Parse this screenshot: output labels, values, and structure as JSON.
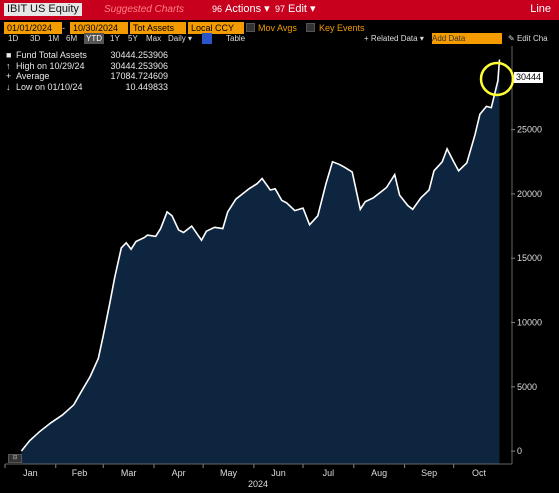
{
  "toolbar": {
    "ticker": "IBIT US Equity",
    "suggested": "Suggested Charts",
    "actions_num": "96",
    "actions_label": "Actions",
    "edit_num": "97",
    "edit_label": "Edit",
    "line_label": "Line"
  },
  "settings": {
    "start_date": "01/01/2024",
    "end_date": "10/30/2024",
    "field": "Tot Assets",
    "currency": "Local CCY",
    "mov_avgs": "Mov Avgs",
    "key_events": "Key Events",
    "related_data": "Related Data",
    "add_data": "Add Data",
    "edit_chart": "Edit Cha"
  },
  "periods": {
    "items": [
      "1D",
      "3D",
      "1M",
      "6M",
      "YTD",
      "1Y",
      "5Y",
      "Max"
    ],
    "selected": "YTD",
    "freq": "Daily",
    "table": "Table"
  },
  "legend": {
    "series": "Fund Total Assets",
    "series_value": "30444.253906",
    "high_label": "High on 10/29/24",
    "high_value": "30444.253906",
    "avg_label": "Average",
    "avg_value": "17084.724609",
    "low_label": "Low on 01/10/24",
    "low_value": "10.449833",
    "series_color": "#ffffff"
  },
  "last_value": "30444",
  "chart_data": {
    "type": "area",
    "series": [
      {
        "name": "Fund Total Assets",
        "color": "#ffffff",
        "fill": "#0e2540"
      }
    ],
    "x_months": [
      "Jan",
      "Feb",
      "Mar",
      "Apr",
      "May",
      "Jun",
      "Jul",
      "Aug",
      "Sep",
      "Oct"
    ],
    "x_year": "2024",
    "y_ticks": [
      0,
      5000,
      10000,
      15000,
      20000,
      25000
    ],
    "ylim": [
      -1000,
      31500
    ],
    "points": [
      [
        "2024-01-11",
        10
      ],
      [
        "2024-01-16",
        800
      ],
      [
        "2024-01-22",
        1500
      ],
      [
        "2024-01-29",
        2200
      ],
      [
        "2024-02-05",
        2800
      ],
      [
        "2024-02-12",
        3600
      ],
      [
        "2024-02-16",
        4500
      ],
      [
        "2024-02-22",
        5800
      ],
      [
        "2024-02-27",
        7200
      ],
      [
        "2024-03-01",
        9000
      ],
      [
        "2024-03-05",
        11500
      ],
      [
        "2024-03-08",
        13500
      ],
      [
        "2024-03-12",
        15800
      ],
      [
        "2024-03-15",
        16200
      ],
      [
        "2024-03-18",
        15700
      ],
      [
        "2024-03-21",
        16300
      ],
      [
        "2024-03-26",
        16600
      ],
      [
        "2024-03-28",
        16800
      ],
      [
        "2024-04-02",
        16700
      ],
      [
        "2024-04-05",
        17300
      ],
      [
        "2024-04-09",
        18600
      ],
      [
        "2024-04-12",
        18300
      ],
      [
        "2024-04-16",
        17200
      ],
      [
        "2024-04-19",
        17000
      ],
      [
        "2024-04-24",
        17500
      ],
      [
        "2024-04-30",
        16400
      ],
      [
        "2024-05-03",
        17100
      ],
      [
        "2024-05-08",
        17400
      ],
      [
        "2024-05-13",
        17300
      ],
      [
        "2024-05-16",
        18600
      ],
      [
        "2024-05-21",
        19600
      ],
      [
        "2024-05-24",
        19900
      ],
      [
        "2024-05-29",
        20400
      ],
      [
        "2024-06-03",
        20800
      ],
      [
        "2024-06-06",
        21200
      ],
      [
        "2024-06-11",
        20300
      ],
      [
        "2024-06-14",
        20400
      ],
      [
        "2024-06-18",
        19500
      ],
      [
        "2024-06-21",
        19300
      ],
      [
        "2024-06-26",
        18700
      ],
      [
        "2024-07-01",
        18900
      ],
      [
        "2024-07-05",
        17600
      ],
      [
        "2024-07-10",
        18300
      ],
      [
        "2024-07-15",
        20800
      ],
      [
        "2024-07-19",
        22500
      ],
      [
        "2024-07-23",
        22300
      ],
      [
        "2024-07-26",
        22100
      ],
      [
        "2024-07-31",
        21700
      ],
      [
        "2024-08-05",
        18800
      ],
      [
        "2024-08-08",
        19400
      ],
      [
        "2024-08-13",
        19700
      ],
      [
        "2024-08-16",
        20000
      ],
      [
        "2024-08-21",
        20500
      ],
      [
        "2024-08-26",
        21500
      ],
      [
        "2024-08-29",
        19900
      ],
      [
        "2024-09-03",
        19100
      ],
      [
        "2024-09-06",
        18800
      ],
      [
        "2024-09-11",
        19700
      ],
      [
        "2024-09-16",
        20300
      ],
      [
        "2024-09-19",
        21800
      ],
      [
        "2024-09-24",
        22500
      ],
      [
        "2024-09-27",
        23500
      ],
      [
        "2024-10-01",
        22500
      ],
      [
        "2024-10-04",
        21800
      ],
      [
        "2024-10-09",
        22400
      ],
      [
        "2024-10-14",
        24600
      ],
      [
        "2024-10-17",
        26200
      ],
      [
        "2024-10-21",
        26800
      ],
      [
        "2024-10-24",
        26700
      ],
      [
        "2024-10-28",
        28800
      ],
      [
        "2024-10-29",
        30444
      ]
    ]
  }
}
